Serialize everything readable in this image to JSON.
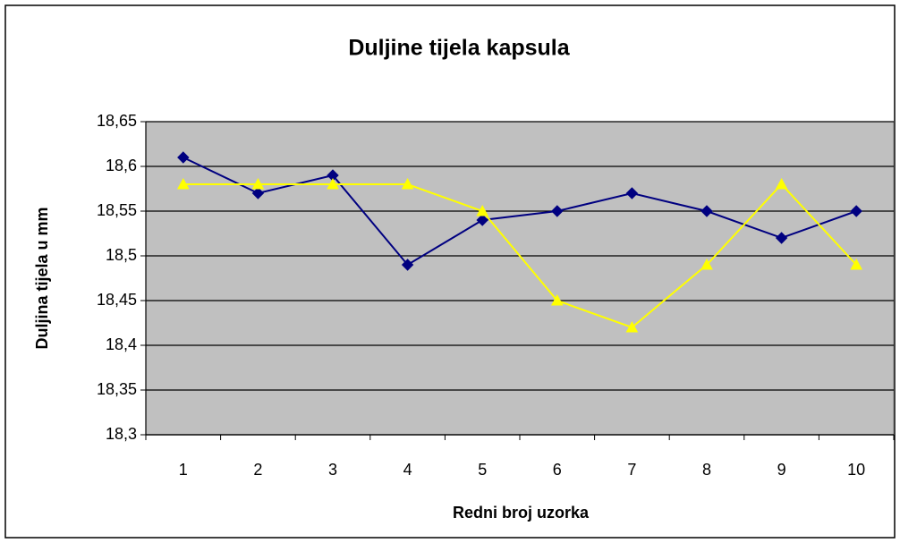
{
  "chart_data": {
    "type": "line",
    "title": "Duljine tijela kapsula",
    "x_label": "Redni broj uzorka",
    "y_label": "Duljina tijela u mm",
    "categories": [
      "1",
      "2",
      "3",
      "4",
      "5",
      "6",
      "7",
      "8",
      "9",
      "10"
    ],
    "series": [
      {
        "color": "#000080",
        "marker": "diamond",
        "values": [
          18.61,
          18.57,
          18.59,
          18.49,
          18.54,
          18.55,
          18.57,
          18.55,
          18.52,
          18.55
        ]
      },
      {
        "color": "#ffff00",
        "marker": "triangle",
        "values": [
          18.58,
          18.58,
          18.58,
          18.58,
          18.55,
          18.45,
          18.42,
          18.49,
          18.58,
          18.49
        ]
      }
    ],
    "ylim": [
      18.3,
      18.65
    ],
    "yticks": [
      {
        "value": 18.3,
        "label": "18,3"
      },
      {
        "value": 18.35,
        "label": "18,35"
      },
      {
        "value": 18.4,
        "label": "18,4"
      },
      {
        "value": 18.45,
        "label": "18,45"
      },
      {
        "value": 18.5,
        "label": "18,5"
      },
      {
        "value": 18.55,
        "label": "18,55"
      },
      {
        "value": 18.6,
        "label": "18,6"
      },
      {
        "value": 18.65,
        "label": "18,65"
      }
    ],
    "grid": true,
    "plot_background": "#c0c0c0"
  }
}
